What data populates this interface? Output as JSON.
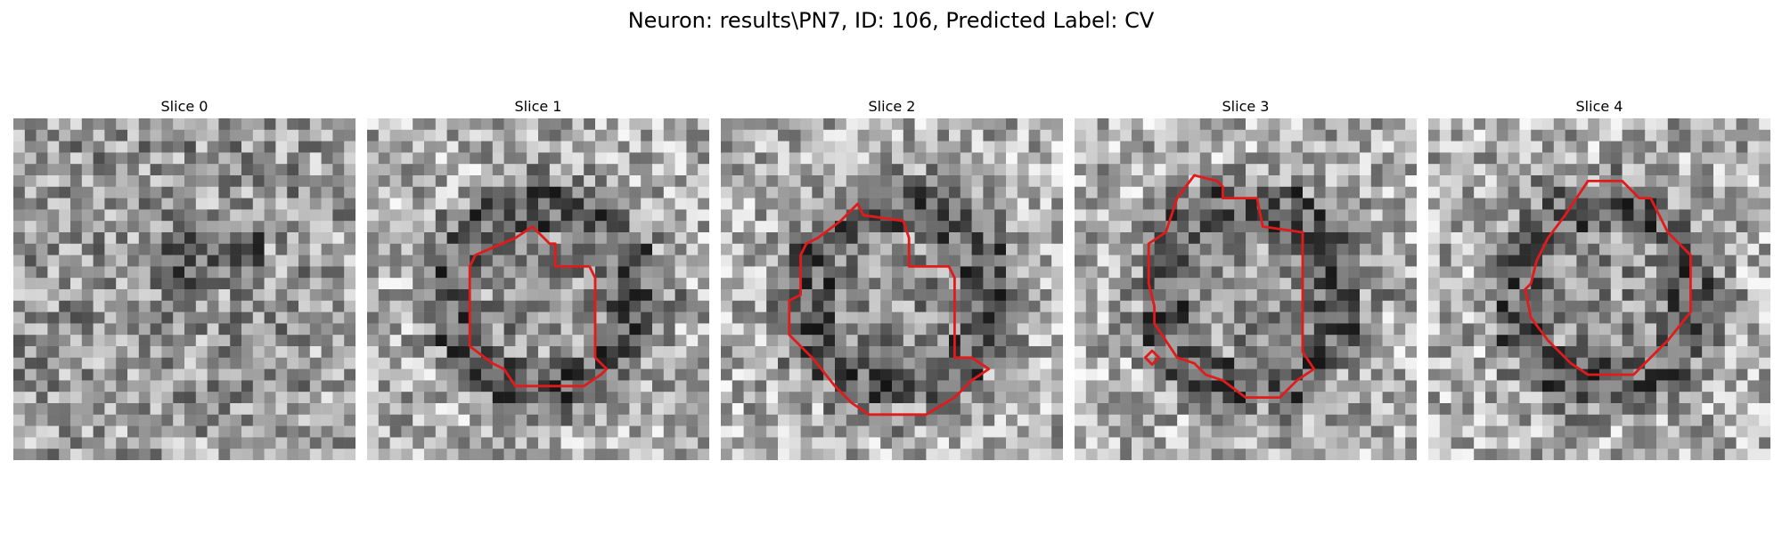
{
  "figure": {
    "title": "Neuron: results\\PN7, ID: 106, Predicted Label: CV",
    "contour_color": "#e11b1b",
    "cmap": "gray"
  },
  "panels": [
    {
      "title": "Slice 0",
      "has_contour": false,
      "seed": 11
    },
    {
      "title": "Slice 1",
      "has_contour": true,
      "seed": 23
    },
    {
      "title": "Slice 2",
      "has_contour": true,
      "seed": 37
    },
    {
      "title": "Slice 3",
      "has_contour": true,
      "seed": 41
    },
    {
      "title": "Slice 4",
      "has_contour": true,
      "seed": 59
    }
  ]
}
